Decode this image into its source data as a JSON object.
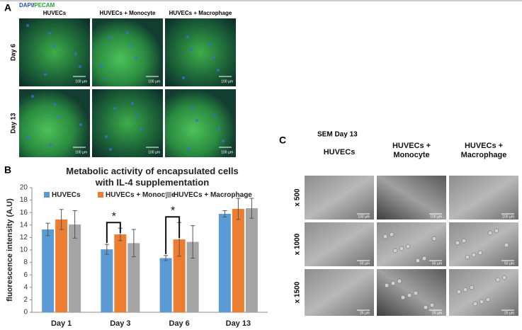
{
  "panel_a": {
    "label": "A",
    "stain": {
      "dapi": "DAPI",
      "sep": "/",
      "pecam": "PECAM"
    },
    "columns": [
      "HUVECs",
      "HUVECs + Monocyte",
      "HUVECs + Macrophage"
    ],
    "rows": [
      "Day 6",
      "Day 13"
    ],
    "scale_bars": [
      [
        "100 µm",
        "100 µm",
        "100 µm"
      ],
      [
        "100 µm",
        "100 µm",
        "100 µm"
      ]
    ]
  },
  "chart_data": {
    "type": "bar",
    "panel_label": "B",
    "title": "Metabolic activity of encapsulated cells with IL-4 supplementation",
    "y_label": "fluorescence intensity (A.U)",
    "categories": [
      "Day 1",
      "Day 3",
      "Day 6",
      "Day 13"
    ],
    "series": [
      {
        "name": "HUVECs",
        "color": "#5b9bd5",
        "values": [
          13.3,
          10.1,
          8.7,
          15.8
        ],
        "errors": [
          1.0,
          0.8,
          0.4,
          0.5
        ]
      },
      {
        "name": "HUVECs + Monocyte",
        "color": "#ed7d31",
        "values": [
          14.9,
          12.5,
          11.7,
          16.6
        ],
        "errors": [
          1.6,
          1.0,
          2.7,
          1.7
        ]
      },
      {
        "name": "HUVECs + Macrophage",
        "color": "#a5a5a5",
        "values": [
          14.1,
          11.1,
          11.3,
          16.7
        ],
        "errors": [
          2.2,
          2.2,
          2.6,
          1.6
        ]
      }
    ],
    "annotations": [
      "*",
      "*"
    ],
    "ylim": [
      0,
      20
    ],
    "yticks": [
      0,
      2,
      4,
      6,
      8,
      10,
      12,
      14,
      16,
      18,
      20
    ],
    "legend": "top"
  },
  "panel_c": {
    "label": "C",
    "title": "SEM Day 13",
    "columns": [
      "HUVECs",
      "HUVECs + Monocyte",
      "HUVECs + Macrophage"
    ],
    "rows": [
      "x 500",
      "x 1000",
      "x 1500"
    ],
    "scale_bars": [
      [
        "100 µm",
        "100 µm",
        "100 µm"
      ],
      [
        "50 µm",
        "50 µm",
        "50 µm"
      ],
      [
        "25 µm",
        "25 µm",
        "25 µm"
      ]
    ]
  }
}
